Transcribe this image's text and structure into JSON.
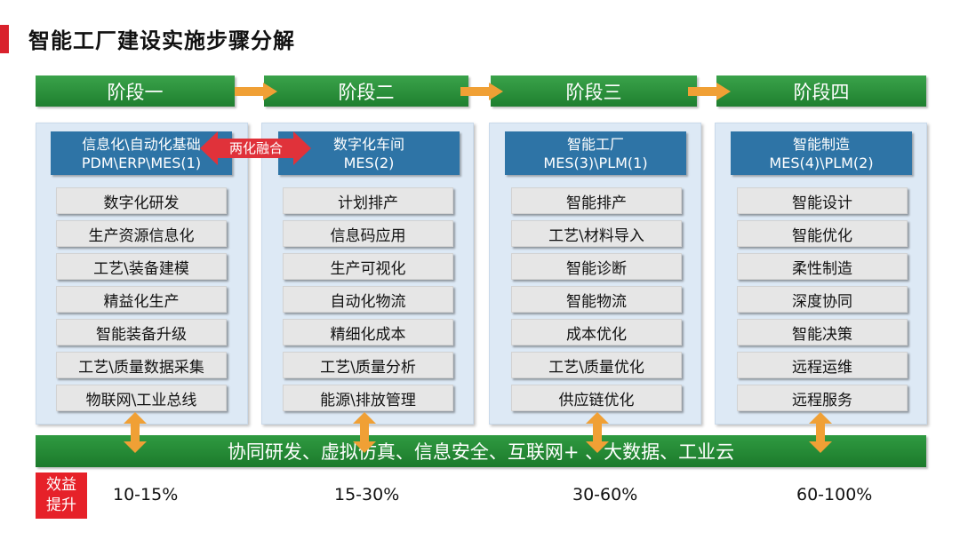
{
  "title": "智能工厂建设实施步骤分解",
  "stages": [
    "阶段一",
    "阶段二",
    "阶段三",
    "阶段四"
  ],
  "fusion_label": "两化融合",
  "columns": [
    {
      "head_line1": "信息化\\自动化基础",
      "head_line2": "PDM\\ERP\\MES(1)",
      "items": [
        "数字化研发",
        "生产资源信息化",
        "工艺\\装备建模",
        "精益化生产",
        "智能装备升级",
        "工艺\\质量数据采集",
        "物联网\\工业总线"
      ]
    },
    {
      "head_line1": "数字化车间",
      "head_line2": "MES(2)",
      "items": [
        "计划排产",
        "信息码应用",
        "生产可视化",
        "自动化物流",
        "精细化成本",
        "工艺\\质量分析",
        "能源\\排放管理"
      ]
    },
    {
      "head_line1": "智能工厂",
      "head_line2": "MES(3)\\PLM(1)",
      "items": [
        "智能排产",
        "工艺\\材料导入",
        "智能诊断",
        "智能物流",
        "成本优化",
        "工艺\\质量优化",
        "供应链优化"
      ]
    },
    {
      "head_line1": "智能制造",
      "head_line2": "MES(4)\\PLM(2)",
      "items": [
        "智能设计",
        "智能优化",
        "柔性制造",
        "深度协同",
        "智能决策",
        "远程运维",
        "远程服务"
      ]
    }
  ],
  "bottom_bar": "协同研发、虚拟仿真、信息安全、互联网+ 、大数据、工业云",
  "gain_label_line1": "效益",
  "gain_label_line2": "提升",
  "gains": [
    "10-15%",
    "15-30%",
    "30-60%",
    "60-100%"
  ],
  "colors": {
    "stage_green": "#2a9a3e",
    "head_blue": "#2e74a6",
    "arrow_orange": "#f0a035",
    "gain_red": "#e62129",
    "fusion_red": "#e0323a"
  }
}
